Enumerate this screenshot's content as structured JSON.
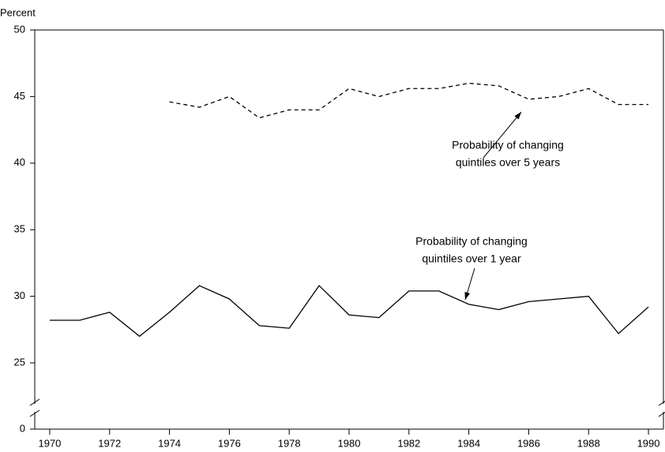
{
  "chart_data": {
    "type": "line",
    "y_label": "Percent",
    "x": [
      1970,
      1971,
      1972,
      1973,
      1974,
      1975,
      1976,
      1977,
      1978,
      1979,
      1980,
      1981,
      1982,
      1983,
      1984,
      1985,
      1986,
      1987,
      1988,
      1989,
      1990
    ],
    "series": [
      {
        "color": "#000000",
        "dash": "solid",
        "values": [
          28.2,
          28.2,
          28.8,
          27.0,
          28.8,
          30.8,
          29.8,
          27.8,
          27.6,
          30.8,
          28.6,
          28.4,
          30.4,
          30.4,
          29.4,
          29.0,
          29.6,
          29.8,
          30.0,
          27.2,
          29.2
        ]
      },
      {
        "color": "#000000",
        "dash": "dashed",
        "values": [
          null,
          null,
          null,
          null,
          44.6,
          44.2,
          45.0,
          43.4,
          44.0,
          44.0,
          45.6,
          45.0,
          45.6,
          45.6,
          46.0,
          45.8,
          44.8,
          45.0,
          45.6,
          44.4,
          44.4
        ]
      }
    ],
    "xlim": [
      1969.5,
      1990.5
    ],
    "xticks": [
      1970,
      1972,
      1974,
      1976,
      1978,
      1980,
      1982,
      1984,
      1986,
      1988,
      1990
    ],
    "ylim": [
      0,
      50
    ],
    "yticks": [
      0,
      25,
      30,
      35,
      40,
      45,
      50
    ],
    "axis_break": true,
    "annotations": [
      {
        "text": [
          "Probability of changing",
          "quintiles over 5 years"
        ]
      },
      {
        "text": [
          "Probability of changing",
          "quintiles over 1 year"
        ]
      }
    ]
  }
}
